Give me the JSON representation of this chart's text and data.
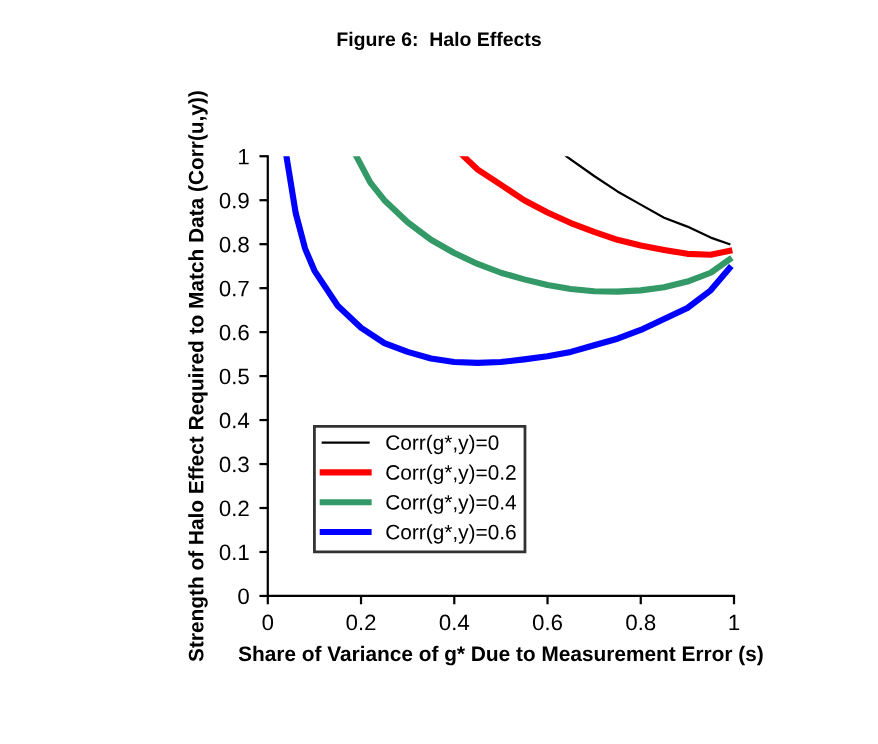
{
  "chart_data": {
    "type": "line",
    "title": "Figure 6:  Halo Effects",
    "xlabel": "Share of Variance of g* Due to Measurement Error (s)",
    "ylabel": "Strength of Halo Effect Required to Match Data (Corr(u,y))",
    "xlim": [
      0,
      1
    ],
    "ylim": [
      0,
      1
    ],
    "xticks": [
      0,
      0.2,
      0.4,
      0.6,
      0.8,
      1
    ],
    "yticks": [
      0,
      0.1,
      0.2,
      0.3,
      0.4,
      0.5,
      0.6,
      0.7,
      0.8,
      0.9,
      1
    ],
    "grid": false,
    "legend": "bottom left",
    "marker": "none",
    "line_style": "solid",
    "series": [
      {
        "name": "Corr(g*,y)=0",
        "color": "#000000",
        "x": [
          0.64,
          0.7,
          0.75,
          0.8,
          0.85,
          0.9,
          0.95,
          0.99
        ],
        "values": [
          1.0,
          0.955,
          0.92,
          0.89,
          0.86,
          0.84,
          0.815,
          0.8
        ]
      },
      {
        "name": "Corr(g*,y)=0.2",
        "color": "#ff0000",
        "x": [
          0.42,
          0.45,
          0.5,
          0.55,
          0.6,
          0.65,
          0.7,
          0.75,
          0.8,
          0.85,
          0.9,
          0.95,
          0.99
        ],
        "values": [
          1.0,
          0.97,
          0.935,
          0.9,
          0.872,
          0.848,
          0.828,
          0.81,
          0.797,
          0.787,
          0.778,
          0.776,
          0.785
        ]
      },
      {
        "name": "Corr(g*,y)=0.4",
        "color": "#339966",
        "x": [
          0.19,
          0.22,
          0.25,
          0.3,
          0.35,
          0.4,
          0.45,
          0.5,
          0.55,
          0.6,
          0.65,
          0.7,
          0.75,
          0.8,
          0.85,
          0.9,
          0.95,
          0.99
        ],
        "values": [
          1.0,
          0.94,
          0.9,
          0.85,
          0.81,
          0.78,
          0.755,
          0.735,
          0.72,
          0.707,
          0.698,
          0.693,
          0.692,
          0.695,
          0.702,
          0.715,
          0.735,
          0.765
        ]
      },
      {
        "name": "Corr(g*,y)=0.6",
        "color": "#0000ff",
        "x": [
          0.04,
          0.06,
          0.08,
          0.1,
          0.15,
          0.2,
          0.25,
          0.3,
          0.35,
          0.4,
          0.45,
          0.5,
          0.55,
          0.6,
          0.65,
          0.7,
          0.75,
          0.8,
          0.85,
          0.9,
          0.95,
          0.99
        ],
        "values": [
          1.0,
          0.87,
          0.79,
          0.74,
          0.66,
          0.61,
          0.575,
          0.555,
          0.54,
          0.532,
          0.53,
          0.532,
          0.538,
          0.545,
          0.555,
          0.57,
          0.585,
          0.605,
          0.63,
          0.655,
          0.695,
          0.745
        ]
      }
    ]
  }
}
